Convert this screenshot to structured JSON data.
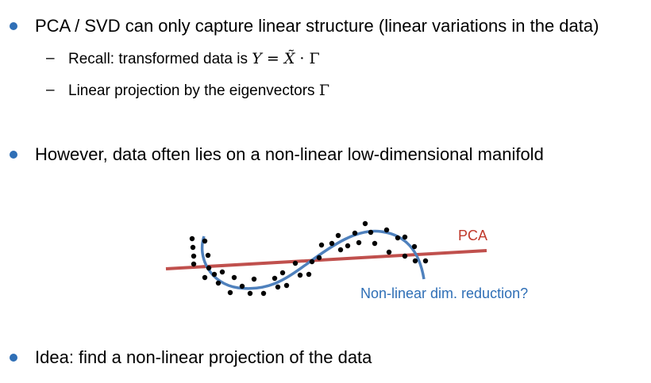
{
  "bullets": [
    {
      "text": "PCA / SVD can only capture linear structure (linear variations in the data)"
    },
    {
      "text": "However, data often lies on a non-linear low-dimensional manifold"
    },
    {
      "text": "Idea: find a non-linear projection of the data"
    }
  ],
  "sub_bullets": [
    {
      "prefix": "Recall: transformed data is ",
      "math_lhs": "Y",
      "math_eq": " = ",
      "math_x": "X̃",
      "math_dot": " · ",
      "math_gamma": "Γ"
    },
    {
      "prefix": "Linear projection by the eigenvectors ",
      "math_gamma": "Γ"
    }
  ],
  "diagram": {
    "pca_label": "PCA",
    "nonlinear_label": "Non-linear dim. reduction?",
    "colors": {
      "pca_line": "#c0504d",
      "curve": "#4f81bd",
      "points": "#000000",
      "bullet": "#2f6fb6"
    }
  }
}
